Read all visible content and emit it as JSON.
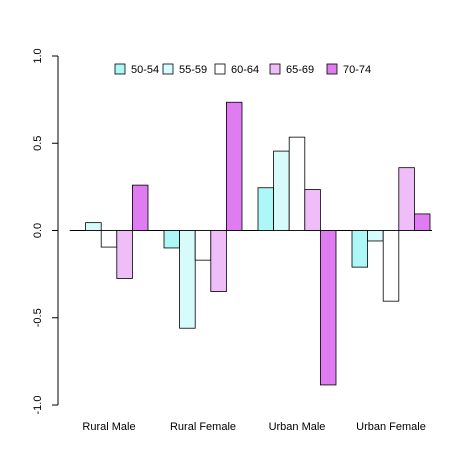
{
  "chart_data": {
    "type": "bar",
    "title": "",
    "xlabel": "",
    "ylabel": "",
    "ylim": [
      -1.0,
      1.0
    ],
    "y_ticks": [
      -1.0,
      -0.5,
      0.0,
      0.5,
      1.0
    ],
    "y_tick_labels": [
      "-1.0",
      "-0.5",
      "0.0",
      "0.5",
      "1.0"
    ],
    "grid": false,
    "legend_position": "top",
    "categories": [
      "Rural Male",
      "Rural Female",
      "Urban Male",
      "Urban Female"
    ],
    "series": [
      {
        "name": "50-54",
        "color": "#aef7f7",
        "values": [
          0.0,
          -0.1,
          0.245,
          -0.21
        ]
      },
      {
        "name": "55-59",
        "color": "#d7fbfb",
        "values": [
          0.045,
          -0.56,
          0.455,
          -0.06
        ]
      },
      {
        "name": "60-64",
        "color": "#ffffff",
        "values": [
          -0.095,
          -0.17,
          0.535,
          -0.405
        ]
      },
      {
        "name": "65-69",
        "color": "#efbdf7",
        "values": [
          -0.275,
          -0.35,
          0.235,
          0.36
        ]
      },
      {
        "name": "70-74",
        "color": "#e07cf2",
        "values": [
          0.26,
          0.735,
          -0.885,
          0.095
        ]
      }
    ]
  }
}
